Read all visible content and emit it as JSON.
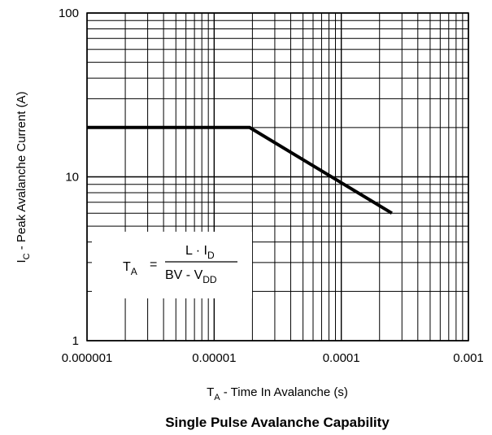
{
  "chart_data": {
    "type": "line",
    "title": "Single Pulse Avalanche Capability",
    "xlabel": "T",
    "xlabel_sub": "A",
    "xlabel_rest": " -  Time In Avalanche (s)",
    "ylabel": "I",
    "ylabel_sub": "C",
    "ylabel_rest": " -  Peak Avalanche Current (A)",
    "x_scale": "log",
    "y_scale": "log",
    "xlim": [
      1e-06,
      0.001
    ],
    "ylim": [
      1,
      100
    ],
    "x_ticks": [
      1e-06,
      1e-05,
      0.0001,
      0.001
    ],
    "x_tick_labels": [
      "0.000001",
      "0.00001",
      "0.0001",
      "0.001"
    ],
    "y_ticks": [
      1,
      10,
      100
    ],
    "y_tick_labels": [
      "1",
      "10",
      "100"
    ],
    "grid": true,
    "series": [
      {
        "x": [
          1e-06,
          1.9e-05,
          0.00025
        ],
        "y": [
          20,
          20,
          6
        ],
        "color": "#000000"
      }
    ],
    "annotation": {
      "lhs": "T",
      "lhs_sub": "A",
      "equals": "=",
      "numerator": "L · I",
      "numerator_sub": "D",
      "denominator": "BV  -  V",
      "denominator_sub": "DD"
    }
  }
}
